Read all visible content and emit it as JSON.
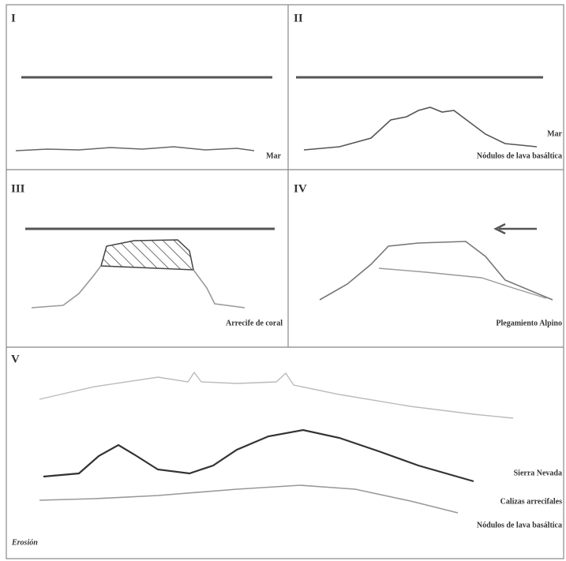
{
  "panels": [
    {
      "number": "I",
      "labels": [
        "Mar"
      ]
    },
    {
      "number": "II",
      "labels": [
        "Mar",
        "Nódulos de lava basáltica"
      ]
    },
    {
      "number": "III",
      "labels": [
        "Arrecife de coral"
      ]
    },
    {
      "number": "IV",
      "labels": [
        "Plegamiento Alpino"
      ]
    },
    {
      "number": "V",
      "labels": [
        "Sierra Nevada",
        "Calizas arrecifales",
        "Nódulos de lava basáltica",
        "Erosión"
      ]
    }
  ]
}
